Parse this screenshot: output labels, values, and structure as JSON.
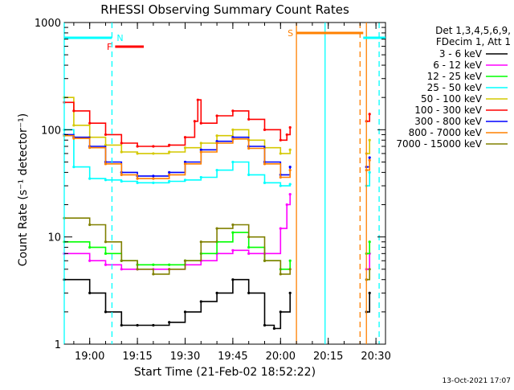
{
  "chart_data": {
    "type": "line",
    "title": "RHESSI Observing Summary Count Rates",
    "xlabel": "Start Time (21-Feb-02 18:52:22)",
    "ylabel": "Count Rate (s⁻¹ detector⁻¹)",
    "y_scale": "log",
    "ylim": [
      1,
      1000
    ],
    "xlim": [
      "18:52",
      "20:33"
    ],
    "x_ticks": [
      "19:00",
      "19:15",
      "19:30",
      "19:45",
      "20:00",
      "20:15",
      "20:30"
    ],
    "y_ticks": [
      "1",
      "10",
      "100",
      "1000"
    ],
    "grid": false,
    "legend_position": "right",
    "legend_header": [
      "Det 1,3,4,5,6,9,",
      "FDecim 1, Att 1"
    ],
    "timestamp": "13-Oct-2021 17:07",
    "series": [
      {
        "name": "3 - 6 keV",
        "color": "#000000",
        "x": [
          "18:52",
          "19:00",
          "19:05",
          "19:10",
          "19:15",
          "19:20",
          "19:25",
          "19:30",
          "19:35",
          "19:40",
          "19:45",
          "19:50",
          "19:55",
          "19:58",
          "20:00",
          "20:03",
          "20:27",
          "20:28"
        ],
        "values": [
          4,
          3,
          2,
          1.5,
          1.5,
          1.5,
          1.6,
          2,
          2.5,
          3,
          4,
          3,
          1.5,
          1.4,
          2,
          3,
          2,
          3
        ]
      },
      {
        "name": "6 - 12 keV",
        "color": "#ff00ff",
        "x": [
          "18:52",
          "19:00",
          "19:05",
          "19:10",
          "19:15",
          "19:20",
          "19:25",
          "19:30",
          "19:35",
          "19:40",
          "19:45",
          "19:50",
          "19:55",
          "20:00",
          "20:02",
          "20:03",
          "20:27",
          "20:28"
        ],
        "values": [
          7,
          6,
          5.5,
          5,
          5,
          5,
          5,
          5.5,
          6,
          7,
          7.5,
          7,
          7,
          12,
          20,
          25,
          5,
          7
        ]
      },
      {
        "name": "12 - 25 keV",
        "color": "#00ff00",
        "x": [
          "18:52",
          "19:00",
          "19:05",
          "19:10",
          "19:15",
          "19:20",
          "19:25",
          "19:30",
          "19:35",
          "19:40",
          "19:45",
          "19:50",
          "19:55",
          "20:00",
          "20:03",
          "20:27",
          "20:28"
        ],
        "values": [
          9,
          8,
          7,
          6,
          5.5,
          5.5,
          5.5,
          6,
          7,
          9,
          11,
          8,
          6,
          5,
          6,
          7,
          9
        ]
      },
      {
        "name": "25 - 50 keV",
        "color": "#00ffff",
        "x": [
          "18:52",
          "18:55",
          "19:00",
          "19:05",
          "19:10",
          "19:15",
          "19:20",
          "19:25",
          "19:30",
          "19:35",
          "19:40",
          "19:45",
          "19:50",
          "19:55",
          "20:00",
          "20:03",
          "20:27",
          "20:28"
        ],
        "values": [
          100,
          45,
          35,
          34,
          33,
          32,
          32,
          33,
          34,
          36,
          42,
          50,
          38,
          32,
          30,
          31,
          30,
          40
        ]
      },
      {
        "name": "50 - 100 keV",
        "color": "#d4c800",
        "x": [
          "18:52",
          "18:55",
          "19:00",
          "19:05",
          "19:10",
          "19:15",
          "19:20",
          "19:25",
          "19:30",
          "19:35",
          "19:40",
          "19:45",
          "19:50",
          "19:55",
          "20:00",
          "20:03",
          "20:27",
          "20:28"
        ],
        "values": [
          200,
          110,
          85,
          72,
          62,
          60,
          60,
          62,
          68,
          75,
          88,
          100,
          80,
          68,
          60,
          65,
          60,
          80
        ]
      },
      {
        "name": "100 - 300 keV",
        "color": "#ff0000",
        "x": [
          "18:52",
          "18:55",
          "19:00",
          "19:05",
          "19:10",
          "19:15",
          "19:20",
          "19:25",
          "19:30",
          "19:33",
          "19:34",
          "19:35",
          "19:40",
          "19:45",
          "19:50",
          "19:55",
          "20:00",
          "20:02",
          "20:03",
          "20:27",
          "20:28"
        ],
        "values": [
          180,
          150,
          115,
          90,
          75,
          70,
          70,
          72,
          85,
          120,
          190,
          115,
          135,
          150,
          125,
          100,
          80,
          90,
          105,
          120,
          140
        ]
      },
      {
        "name": "300 - 800 keV",
        "color": "#0000ff",
        "x": [
          "18:52",
          "18:55",
          "19:00",
          "19:05",
          "19:10",
          "19:15",
          "19:20",
          "19:25",
          "19:30",
          "19:35",
          "19:40",
          "19:45",
          "19:50",
          "19:55",
          "20:00",
          "20:03",
          "20:27",
          "20:28"
        ],
        "values": [
          90,
          85,
          70,
          50,
          40,
          37,
          37,
          40,
          50,
          65,
          78,
          85,
          70,
          50,
          38,
          45,
          45,
          55
        ]
      },
      {
        "name": "800 - 7000 keV",
        "color": "#ff8000",
        "x": [
          "18:52",
          "18:55",
          "19:00",
          "19:05",
          "19:10",
          "19:15",
          "19:20",
          "19:25",
          "19:30",
          "19:35",
          "19:40",
          "19:45",
          "19:50",
          "19:55",
          "20:00",
          "20:03",
          "20:27",
          "20:28"
        ],
        "values": [
          88,
          83,
          68,
          48,
          38,
          35,
          35,
          38,
          48,
          62,
          75,
          82,
          67,
          48,
          36,
          42,
          42,
          52
        ]
      },
      {
        "name": "7000 - 15000 keV",
        "color": "#808000",
        "x": [
          "18:52",
          "19:00",
          "19:05",
          "19:10",
          "19:15",
          "19:20",
          "19:25",
          "19:30",
          "19:35",
          "19:40",
          "19:45",
          "19:50",
          "19:55",
          "20:00",
          "20:03",
          "20:27",
          "20:28"
        ],
        "values": [
          15,
          13,
          9,
          6,
          5,
          4.5,
          5,
          6,
          9,
          12,
          13,
          10,
          6,
          4.5,
          5,
          4,
          5
        ]
      }
    ],
    "flags": [
      {
        "label": "N",
        "color": "#00ffff",
        "start": "18:52",
        "end": "19:07"
      },
      {
        "label": "F",
        "color": "#ff0000",
        "start": "19:08",
        "end": "19:17"
      },
      {
        "label": "S",
        "color": "#ff8000",
        "start": "20:05",
        "end": "20:26"
      },
      {
        "label": "",
        "color": "#00ffff",
        "start": "20:26",
        "end": "20:33"
      }
    ],
    "vertical_markers": [
      {
        "time": "18:52",
        "color": "#00ffff",
        "style": "solid"
      },
      {
        "time": "19:07",
        "color": "#00ffff",
        "style": "dashed"
      },
      {
        "time": "20:05",
        "color": "#ff8000",
        "style": "solid"
      },
      {
        "time": "20:14",
        "color": "#00ffff",
        "style": "solid"
      },
      {
        "time": "20:25",
        "color": "#ff8000",
        "style": "dashed"
      },
      {
        "time": "20:27",
        "color": "#ff8000",
        "style": "solid"
      },
      {
        "time": "20:31",
        "color": "#00ffff",
        "style": "dashed"
      }
    ]
  }
}
